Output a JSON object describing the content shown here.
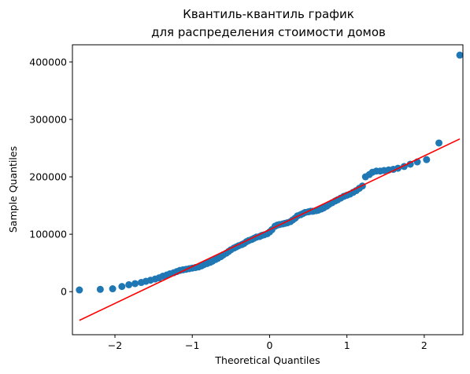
{
  "chart_data": {
    "type": "scatter",
    "title_line1": "Квантиль-квантиль график",
    "title_line2": "для распределения стоимости домов",
    "xlabel": "Theoretical Quantiles",
    "ylabel": "Sample Quantiles",
    "xlim": [
      -2.55,
      2.5
    ],
    "ylim": [
      -75000,
      430000
    ],
    "x_ticks": [
      -2,
      -1,
      0,
      1,
      2
    ],
    "y_ticks": [
      0,
      100000,
      200000,
      300000,
      400000
    ],
    "x_tick_labels": [
      "−2",
      "−1",
      "0",
      "1",
      "2"
    ],
    "y_tick_labels": [
      "0",
      "100000",
      "200000",
      "300000",
      "400000"
    ],
    "grid": false,
    "series": [
      {
        "kind": "points",
        "color": "#1f77b4",
        "points": [
          [
            -2.46,
            3000
          ],
          [
            -2.19,
            4000
          ],
          [
            -2.03,
            5000
          ],
          [
            -1.91,
            9000
          ],
          [
            -1.82,
            12000
          ],
          [
            -1.74,
            14000
          ],
          [
            -1.66,
            16000
          ],
          [
            -1.6,
            18000
          ],
          [
            -1.54,
            20000
          ],
          [
            -1.48,
            22000
          ],
          [
            -1.43,
            24000
          ],
          [
            -1.38,
            27000
          ],
          [
            -1.33,
            29000
          ],
          [
            -1.29,
            31000
          ],
          [
            -1.24,
            33000
          ],
          [
            -1.2,
            35000
          ],
          [
            -1.16,
            37000
          ],
          [
            -1.12,
            38000
          ],
          [
            -1.08,
            39000
          ],
          [
            -1.04,
            40000
          ],
          [
            -1.0,
            41000
          ],
          [
            -0.96,
            42000
          ],
          [
            -0.92,
            43000
          ],
          [
            -0.88,
            45000
          ],
          [
            -0.85,
            47000
          ],
          [
            -0.81,
            49000
          ],
          [
            -0.77,
            51000
          ],
          [
            -0.74,
            53000
          ],
          [
            -0.7,
            56000
          ],
          [
            -0.67,
            58000
          ],
          [
            -0.63,
            61000
          ],
          [
            -0.6,
            64000
          ],
          [
            -0.56,
            67000
          ],
          [
            -0.53,
            70000
          ],
          [
            -0.5,
            73000
          ],
          [
            -0.46,
            76000
          ],
          [
            -0.43,
            78000
          ],
          [
            -0.4,
            80000
          ],
          [
            -0.36,
            82000
          ],
          [
            -0.33,
            84000
          ],
          [
            -0.3,
            87000
          ],
          [
            -0.27,
            89000
          ],
          [
            -0.23,
            91000
          ],
          [
            -0.2,
            93000
          ],
          [
            -0.17,
            95000
          ],
          [
            -0.13,
            96000
          ],
          [
            -0.1,
            98000
          ],
          [
            -0.07,
            99000
          ],
          [
            -0.03,
            101000
          ],
          [
            0.0,
            104000
          ],
          [
            0.03,
            108000
          ],
          [
            0.07,
            114000
          ],
          [
            0.1,
            116000
          ],
          [
            0.13,
            117000
          ],
          [
            0.17,
            118000
          ],
          [
            0.2,
            119000
          ],
          [
            0.23,
            120000
          ],
          [
            0.27,
            122000
          ],
          [
            0.3,
            125000
          ],
          [
            0.33,
            128000
          ],
          [
            0.36,
            132000
          ],
          [
            0.4,
            134000
          ],
          [
            0.43,
            136000
          ],
          [
            0.46,
            138000
          ],
          [
            0.5,
            139000
          ],
          [
            0.53,
            140000
          ],
          [
            0.56,
            140000
          ],
          [
            0.6,
            141000
          ],
          [
            0.63,
            142000
          ],
          [
            0.67,
            144000
          ],
          [
            0.7,
            146000
          ],
          [
            0.74,
            149000
          ],
          [
            0.77,
            152000
          ],
          [
            0.81,
            155000
          ],
          [
            0.85,
            158000
          ],
          [
            0.88,
            160000
          ],
          [
            0.92,
            163000
          ],
          [
            0.96,
            166000
          ],
          [
            1.0,
            168000
          ],
          [
            1.04,
            170000
          ],
          [
            1.08,
            173000
          ],
          [
            1.12,
            176000
          ],
          [
            1.16,
            180000
          ],
          [
            1.2,
            184000
          ],
          [
            1.24,
            200000
          ],
          [
            1.29,
            204000
          ],
          [
            1.33,
            208000
          ],
          [
            1.38,
            210000
          ],
          [
            1.43,
            210000
          ],
          [
            1.48,
            211000
          ],
          [
            1.54,
            212000
          ],
          [
            1.6,
            213000
          ],
          [
            1.66,
            215000
          ],
          [
            1.74,
            218000
          ],
          [
            1.82,
            222000
          ],
          [
            1.91,
            226000
          ],
          [
            2.03,
            230000
          ],
          [
            2.19,
            259000
          ],
          [
            2.46,
            412000
          ]
        ]
      },
      {
        "kind": "fit-line",
        "color": "#ff0000",
        "points": [
          [
            -2.46,
            -50000
          ],
          [
            2.46,
            266000
          ]
        ]
      }
    ]
  }
}
